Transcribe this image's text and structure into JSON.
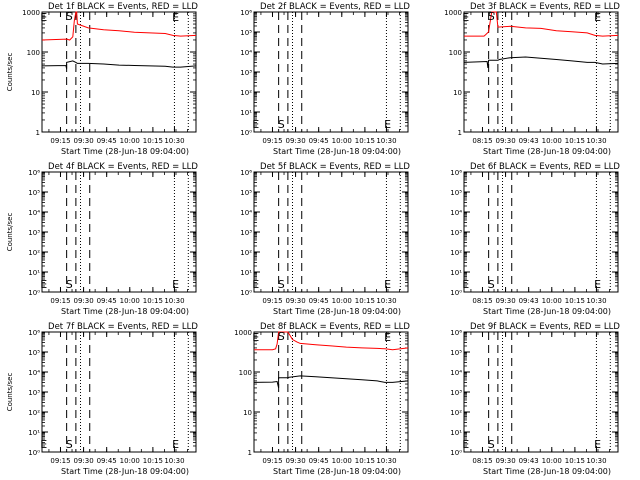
{
  "chart_data": [
    {
      "type": "line",
      "title": "Det 1f BLACK = Events, RED = LLD",
      "xlabel": "Start Time (28-Jun-18 09:04:00)",
      "ylabel": "Counts/sec",
      "x_ticks": [
        "09:15",
        "09:30",
        "09:45",
        "10:00",
        "10:15",
        "10:30"
      ],
      "y_scale": "log",
      "ylim": [
        1,
        1000
      ],
      "y_ticks": [
        "1",
        "10",
        "100",
        "1000"
      ],
      "xlim": [
        0,
        100
      ],
      "markers": [
        {
          "label": "E",
          "x": 1.5
        },
        {
          "label": "S",
          "x": 18
        }
      ],
      "marker_E_right": {
        "label": "E",
        "x": 91
      },
      "vlines_dashed": [
        16,
        22,
        31
      ],
      "vlines_dotted": [
        25,
        86,
        95
      ],
      "series": [
        {
          "name": "LLD",
          "color": "#ff0000",
          "x": [
            0,
            16,
            18,
            20,
            21,
            22,
            22.5,
            23,
            30,
            40,
            50,
            60,
            70,
            80,
            85,
            90,
            100
          ],
          "y": [
            200,
            210,
            200,
            240,
            600,
            1000,
            1000,
            500,
            400,
            360,
            340,
            310,
            300,
            290,
            260,
            250,
            260
          ]
        },
        {
          "name": "Events",
          "color": "#000000",
          "x": [
            0,
            15.5,
            16,
            16,
            20,
            22,
            23,
            30,
            40,
            50,
            60,
            70,
            80,
            85,
            90,
            100
          ],
          "y": [
            45,
            46,
            38,
            55,
            60,
            55,
            52,
            52,
            50,
            47,
            46,
            45,
            44,
            42,
            42,
            45
          ]
        }
      ]
    },
    {
      "type": "line",
      "title": "Det 2f BLACK = Events, RED = LLD",
      "xlabel": "Start Time (28-Jun-18 09:04:00)",
      "ylabel": "",
      "x_ticks": [
        "09:15",
        "09:30",
        "09:45",
        "10:00",
        "10:15",
        "10:30"
      ],
      "y_scale": "log",
      "ylim": [
        1,
        1000000
      ],
      "y_ticks": [
        "10⁰",
        "10¹",
        "10²",
        "10³",
        "10⁴",
        "10⁵",
        "10⁶"
      ],
      "xlim": [
        0,
        100
      ],
      "markers": [
        {
          "label": "E",
          "x": 1.5
        },
        {
          "label": "S",
          "x": 18
        }
      ],
      "marker_E_right": {
        "label": "E",
        "x": 91
      },
      "vlines_dashed": [
        16,
        22,
        31
      ],
      "vlines_dotted": [
        25,
        86,
        95
      ],
      "series": []
    },
    {
      "type": "line",
      "title": "Det 3f BLACK = Events, RED = LLD",
      "xlabel": "Start Time (28-Jun-18 09:04:00)",
      "ylabel": "",
      "x_ticks": [
        "08:15",
        "09:30",
        "09:43",
        "10:00",
        "10:15",
        "10:30"
      ],
      "y_scale": "log",
      "ylim": [
        1,
        1000
      ],
      "y_ticks": [
        "1",
        "10",
        "100",
        "1000"
      ],
      "xlim": [
        0,
        100
      ],
      "markers": [
        {
          "label": "E",
          "x": 1.5
        },
        {
          "label": "S",
          "x": 18
        }
      ],
      "marker_E_right": {
        "label": "E",
        "x": 91
      },
      "vlines_dashed": [
        16,
        22,
        31
      ],
      "vlines_dotted": [
        25,
        86,
        95
      ],
      "series": [
        {
          "name": "LLD",
          "color": "#ff0000",
          "x": [
            0,
            13,
            14,
            16,
            18,
            20,
            21,
            22,
            30,
            40,
            50,
            60,
            70,
            80,
            85,
            90,
            100
          ],
          "y": [
            250,
            250,
            270,
            320,
            1000,
            1000,
            1000,
            420,
            440,
            400,
            390,
            340,
            320,
            300,
            260,
            250,
            260
          ]
        },
        {
          "name": "Events",
          "color": "#000000",
          "x": [
            0,
            15,
            15.5,
            16,
            22,
            23,
            30,
            40,
            50,
            60,
            70,
            80,
            85,
            90,
            100
          ],
          "y": [
            55,
            58,
            40,
            62,
            62,
            65,
            72,
            75,
            70,
            65,
            60,
            55,
            55,
            50,
            52
          ]
        }
      ]
    },
    {
      "type": "line",
      "title": "Det 4f BLACK = Events, RED = LLD",
      "xlabel": "Start Time (28-Jun-18 09:04:00)",
      "ylabel": "Counts/sec",
      "x_ticks": [
        "09:15",
        "09:30",
        "09:45",
        "10:00",
        "10:15",
        "10:30"
      ],
      "y_scale": "log",
      "ylim": [
        1,
        1000000
      ],
      "y_ticks": [
        "10⁰",
        "10¹",
        "10²",
        "10³",
        "10⁴",
        "10⁵",
        "10⁶"
      ],
      "xlim": [
        0,
        100
      ],
      "markers": [
        {
          "label": "E",
          "x": 1.5
        },
        {
          "label": "S",
          "x": 18
        }
      ],
      "marker_E_right": {
        "label": "E",
        "x": 91
      },
      "vlines_dashed": [
        16,
        22,
        31
      ],
      "vlines_dotted": [
        25,
        86,
        95
      ],
      "series": []
    },
    {
      "type": "line",
      "title": "Det 5f BLACK = Events, RED = LLD",
      "xlabel": "Start Time (28-Jun-18 09:04:00)",
      "ylabel": "",
      "x_ticks": [
        "09:15",
        "09:30",
        "09:45",
        "10:00",
        "10:15",
        "10:30"
      ],
      "y_scale": "log",
      "ylim": [
        1,
        1000000
      ],
      "y_ticks": [
        "10⁰",
        "10¹",
        "10²",
        "10³",
        "10⁴",
        "10⁵",
        "10⁶"
      ],
      "xlim": [
        0,
        100
      ],
      "markers": [
        {
          "label": "E",
          "x": 1.5
        },
        {
          "label": "S",
          "x": 18
        }
      ],
      "marker_E_right": {
        "label": "E",
        "x": 91
      },
      "vlines_dashed": [
        16,
        22,
        31
      ],
      "vlines_dotted": [
        25,
        86,
        95
      ],
      "series": []
    },
    {
      "type": "line",
      "title": "Det 6f BLACK = Events, RED = LLD",
      "xlabel": "Start Time (28-Jun-18 09:04:00)",
      "ylabel": "",
      "x_ticks": [
        "08:15",
        "09:30",
        "09:43",
        "10:00",
        "10:15",
        "10:30"
      ],
      "y_scale": "log",
      "ylim": [
        1,
        1000000
      ],
      "y_ticks": [
        "10⁰",
        "10¹",
        "10²",
        "10³",
        "10⁴",
        "10⁵",
        "10⁶"
      ],
      "xlim": [
        0,
        100
      ],
      "markers": [
        {
          "label": "E",
          "x": 1.5
        },
        {
          "label": "S",
          "x": 18
        }
      ],
      "marker_E_right": {
        "label": "E",
        "x": 91
      },
      "vlines_dashed": [
        16,
        22,
        31
      ],
      "vlines_dotted": [
        25,
        86,
        95
      ],
      "series": []
    },
    {
      "type": "line",
      "title": "Det 7f BLACK = Events, RED = LLD",
      "xlabel": "Start Time (28-Jun-18 09:04:00)",
      "ylabel": "Counts/sec",
      "x_ticks": [
        "09:15",
        "09:30",
        "09:45",
        "10:00",
        "10:15",
        "10:30"
      ],
      "y_scale": "log",
      "ylim": [
        1,
        1000000
      ],
      "y_ticks": [
        "10⁰",
        "10¹",
        "10²",
        "10³",
        "10⁴",
        "10⁵",
        "10⁶"
      ],
      "xlim": [
        0,
        100
      ],
      "markers": [
        {
          "label": "E",
          "x": 1.5
        },
        {
          "label": "S",
          "x": 18
        }
      ],
      "marker_E_right": {
        "label": "E",
        "x": 91
      },
      "vlines_dashed": [
        16,
        22,
        31
      ],
      "vlines_dotted": [
        25,
        86,
        95
      ],
      "series": []
    },
    {
      "type": "line",
      "title": "Det 8f BLACK = Events, RED = LLD",
      "xlabel": "Start Time (28-Jun-18 09:04:00)",
      "ylabel": "",
      "x_ticks": [
        "09:15",
        "09:30",
        "09:45",
        "10:00",
        "10:15",
        "10:30"
      ],
      "y_scale": "log",
      "ylim": [
        1,
        1000
      ],
      "y_ticks": [
        "1",
        "10",
        "100",
        "1000"
      ],
      "xlim": [
        0,
        100
      ],
      "markers": [
        {
          "label": "E",
          "x": 1.5
        },
        {
          "label": "S",
          "x": 18
        }
      ],
      "marker_E_right": {
        "label": "E",
        "x": 91
      },
      "vlines_dashed": [
        16,
        22,
        31
      ],
      "vlines_dotted": [
        25,
        86,
        95
      ],
      "series": [
        {
          "name": "LLD",
          "color": "#ff0000",
          "x": [
            0,
            12,
            14,
            15,
            16,
            18,
            20,
            22,
            25,
            28,
            30,
            40,
            50,
            60,
            70,
            80,
            85,
            90,
            100
          ],
          "y": [
            360,
            360,
            380,
            500,
            1000,
            1000,
            1000,
            1000,
            650,
            560,
            520,
            480,
            450,
            420,
            400,
            390,
            380,
            360,
            400
          ]
        },
        {
          "name": "Events",
          "color": "#000000",
          "x": [
            0,
            12,
            15,
            16,
            16,
            22,
            23,
            30,
            40,
            50,
            60,
            70,
            80,
            85,
            90,
            100
          ],
          "y": [
            55,
            56,
            58,
            40,
            72,
            72,
            74,
            80,
            76,
            72,
            68,
            64,
            60,
            55,
            55,
            60
          ]
        }
      ]
    },
    {
      "type": "line",
      "title": "Det 9f BLACK = Events, RED = LLD",
      "xlabel": "Start Time (28-Jun-18 09:04:00)",
      "ylabel": "",
      "x_ticks": [
        "08:15",
        "09:30",
        "09:43",
        "10:00",
        "10:15",
        "10:30"
      ],
      "y_scale": "log",
      "ylim": [
        1,
        1000000
      ],
      "y_ticks": [
        "10⁰",
        "10¹",
        "10²",
        "10³",
        "10⁴",
        "10⁵",
        "10⁶"
      ],
      "xlim": [
        0,
        100
      ],
      "markers": [
        {
          "label": "E",
          "x": 1.5
        },
        {
          "label": "S",
          "x": 18
        }
      ],
      "marker_E_right": {
        "label": "E",
        "x": 91
      },
      "vlines_dashed": [
        16,
        22,
        31
      ],
      "vlines_dotted": [
        25,
        86,
        95
      ],
      "series": []
    }
  ]
}
